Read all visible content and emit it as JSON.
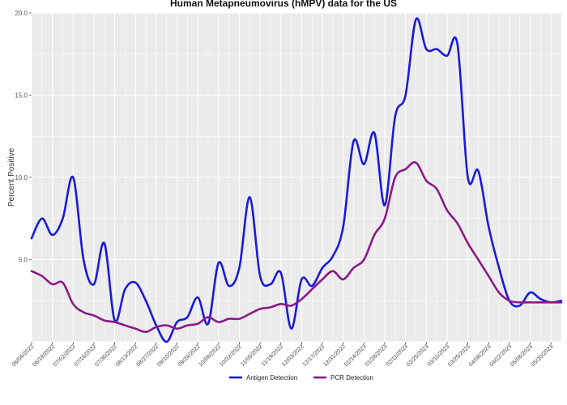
{
  "chart_data": {
    "type": "line",
    "title": "Human Metapneumovirus (hMPV) data for the US",
    "xlabel": "",
    "ylabel": "Percent Positive",
    "ylim": [
      0,
      20
    ],
    "yticks": [
      5,
      10,
      15,
      20
    ],
    "grid": true,
    "legend_position": "bottom",
    "x_tick_labels": [
      "06/04/2022",
      "06/18/2022",
      "07/02/2022",
      "07/16/2022",
      "07/30/2022",
      "08/13/2022",
      "08/27/2022",
      "09/10/2022",
      "09/24/2022",
      "10/08/2022",
      "10/22/2022",
      "11/05/2022",
      "11/19/2022",
      "12/03/2022",
      "12/17/2022",
      "12/31/2022",
      "01/14/2023",
      "01/28/2023",
      "02/11/2023",
      "02/25/2023",
      "03/11/2023",
      "03/25/2023",
      "04/08/2023",
      "04/22/2023",
      "05/06/2023",
      "05/20/2023"
    ],
    "x": [
      "06/04/2022",
      "06/11/2022",
      "06/18/2022",
      "06/25/2022",
      "07/02/2022",
      "07/09/2022",
      "07/16/2022",
      "07/23/2022",
      "07/30/2022",
      "08/06/2022",
      "08/13/2022",
      "08/20/2022",
      "08/27/2022",
      "09/03/2022",
      "09/10/2022",
      "09/17/2022",
      "09/24/2022",
      "10/01/2022",
      "10/08/2022",
      "10/15/2022",
      "10/22/2022",
      "10/29/2022",
      "11/05/2022",
      "11/12/2022",
      "11/19/2022",
      "11/26/2022",
      "12/03/2022",
      "12/10/2022",
      "12/17/2022",
      "12/24/2022",
      "12/31/2022",
      "01/07/2023",
      "01/14/2023",
      "01/21/2023",
      "01/28/2023",
      "02/04/2023",
      "02/11/2023",
      "02/18/2023",
      "02/25/2023",
      "03/04/2023",
      "03/11/2023",
      "03/18/2023",
      "03/25/2023",
      "04/01/2023",
      "04/08/2023",
      "04/15/2023",
      "04/22/2023",
      "04/29/2023",
      "05/06/2023",
      "05/13/2023",
      "05/20/2023",
      "05/27/2023"
    ],
    "series": [
      {
        "name": "Antigen Detection",
        "color": "#1a1adb",
        "values": [
          6.3,
          7.5,
          6.5,
          7.5,
          10.0,
          5.0,
          3.5,
          6.0,
          1.3,
          3.2,
          3.6,
          2.5,
          1.0,
          0.0,
          1.2,
          1.5,
          2.7,
          1.1,
          4.8,
          3.4,
          4.5,
          8.8,
          4.0,
          3.5,
          4.2,
          0.8,
          3.8,
          3.4,
          4.5,
          5.2,
          7.0,
          12.2,
          10.8,
          12.7,
          8.3,
          13.7,
          15.0,
          19.6,
          17.8,
          17.8,
          17.4,
          18.1,
          10.0,
          10.4,
          7.0,
          4.5,
          2.5,
          2.2,
          3.0,
          2.6,
          2.4,
          2.5
        ]
      },
      {
        "name": "PCR Detection",
        "color": "#8b1a89",
        "values": [
          4.3,
          4.0,
          3.5,
          3.6,
          2.3,
          1.8,
          1.6,
          1.3,
          1.2,
          1.0,
          0.8,
          0.6,
          0.9,
          1.0,
          0.8,
          1.0,
          1.1,
          1.5,
          1.2,
          1.4,
          1.4,
          1.7,
          2.0,
          2.1,
          2.3,
          2.2,
          2.6,
          3.2,
          3.8,
          4.3,
          3.8,
          4.5,
          5.0,
          6.5,
          7.5,
          10.0,
          10.5,
          10.9,
          9.8,
          9.3,
          8.0,
          7.2,
          6.0,
          5.0,
          4.0,
          3.0,
          2.5,
          2.4,
          2.4,
          2.4,
          2.4,
          2.4
        ]
      }
    ]
  }
}
